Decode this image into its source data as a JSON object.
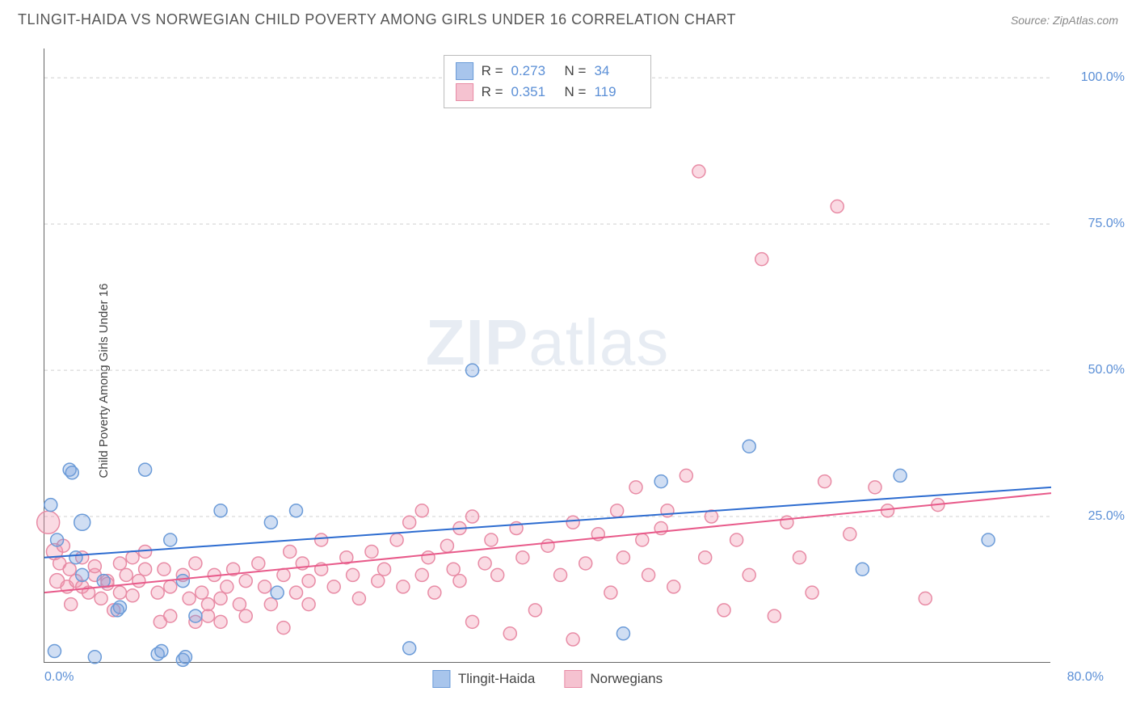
{
  "title": "TLINGIT-HAIDA VS NORWEGIAN CHILD POVERTY AMONG GIRLS UNDER 16 CORRELATION CHART",
  "source": "Source: ZipAtlas.com",
  "y_axis_label": "Child Poverty Among Girls Under 16",
  "watermark_bold": "ZIP",
  "watermark_rest": "atlas",
  "chart": {
    "type": "scatter",
    "xlim": [
      0,
      80
    ],
    "ylim": [
      0,
      105
    ],
    "x_ticks": [
      {
        "pos": 0,
        "label": "0.0%",
        "align": "left"
      },
      {
        "pos": 80,
        "label": "80.0%",
        "align": "right"
      }
    ],
    "y_ticks": [
      {
        "pos": 25,
        "label": "25.0%"
      },
      {
        "pos": 50,
        "label": "50.0%"
      },
      {
        "pos": 75,
        "label": "75.0%"
      },
      {
        "pos": 100,
        "label": "100.0%"
      }
    ],
    "grid_color": "#d0d0d0",
    "background_color": "#ffffff",
    "series": [
      {
        "name": "Tlingit-Haida",
        "fill": "rgba(120,160,220,0.35)",
        "stroke": "#6b9bd8",
        "swatch_fill": "#a8c5ec",
        "swatch_border": "#6b9bd8",
        "R": "0.273",
        "N": "34",
        "trend_color": "#2d6cd0",
        "trend": {
          "x1": 0,
          "y1": 18,
          "x2": 80,
          "y2": 30
        },
        "points": [
          {
            "x": 0.5,
            "y": 27,
            "r": 8
          },
          {
            "x": 0.8,
            "y": 2,
            "r": 8
          },
          {
            "x": 1,
            "y": 21,
            "r": 8
          },
          {
            "x": 2,
            "y": 33,
            "r": 8
          },
          {
            "x": 2.2,
            "y": 32.5,
            "r": 8
          },
          {
            "x": 2.5,
            "y": 18,
            "r": 8
          },
          {
            "x": 3,
            "y": 15,
            "r": 8
          },
          {
            "x": 3,
            "y": 24,
            "r": 10
          },
          {
            "x": 4,
            "y": 1,
            "r": 8
          },
          {
            "x": 4.7,
            "y": 14,
            "r": 8
          },
          {
            "x": 5.8,
            "y": 9,
            "r": 8
          },
          {
            "x": 6,
            "y": 9.5,
            "r": 8
          },
          {
            "x": 8,
            "y": 33,
            "r": 8
          },
          {
            "x": 9,
            "y": 1.5,
            "r": 8
          },
          {
            "x": 9.3,
            "y": 2,
            "r": 8
          },
          {
            "x": 10,
            "y": 21,
            "r": 8
          },
          {
            "x": 11,
            "y": 14,
            "r": 8
          },
          {
            "x": 11,
            "y": 0.5,
            "r": 8
          },
          {
            "x": 11.2,
            "y": 1,
            "r": 8
          },
          {
            "x": 12,
            "y": 8,
            "r": 8
          },
          {
            "x": 14,
            "y": 26,
            "r": 8
          },
          {
            "x": 18,
            "y": 24,
            "r": 8
          },
          {
            "x": 18.5,
            "y": 12,
            "r": 8
          },
          {
            "x": 20,
            "y": 26,
            "r": 8
          },
          {
            "x": 29,
            "y": 2.5,
            "r": 8
          },
          {
            "x": 34,
            "y": 50,
            "r": 8
          },
          {
            "x": 46,
            "y": 5,
            "r": 8
          },
          {
            "x": 49,
            "y": 31,
            "r": 8
          },
          {
            "x": 56,
            "y": 37,
            "r": 8
          },
          {
            "x": 65,
            "y": 16,
            "r": 8
          },
          {
            "x": 68,
            "y": 32,
            "r": 8
          },
          {
            "x": 75,
            "y": 21,
            "r": 8
          }
        ]
      },
      {
        "name": "Norwegians",
        "fill": "rgba(240,150,175,0.35)",
        "stroke": "#e88ba5",
        "swatch_fill": "#f5c2d0",
        "swatch_border": "#e88ba5",
        "R": "0.351",
        "N": "119",
        "trend_color": "#e85a8a",
        "trend": {
          "x1": 0,
          "y1": 12,
          "x2": 80,
          "y2": 29
        },
        "points": [
          {
            "x": 0.3,
            "y": 24,
            "r": 14
          },
          {
            "x": 0.8,
            "y": 19,
            "r": 10
          },
          {
            "x": 1,
            "y": 14,
            "r": 9
          },
          {
            "x": 1.2,
            "y": 17,
            "r": 8
          },
          {
            "x": 1.5,
            "y": 20,
            "r": 8
          },
          {
            "x": 1.8,
            "y": 13,
            "r": 8
          },
          {
            "x": 2,
            "y": 16,
            "r": 8
          },
          {
            "x": 2.1,
            "y": 10,
            "r": 8
          },
          {
            "x": 2.5,
            "y": 14,
            "r": 8
          },
          {
            "x": 3,
            "y": 13,
            "r": 8
          },
          {
            "x": 3,
            "y": 18,
            "r": 8
          },
          {
            "x": 3.5,
            "y": 12,
            "r": 8
          },
          {
            "x": 4,
            "y": 15,
            "r": 8
          },
          {
            "x": 4,
            "y": 16.5,
            "r": 8
          },
          {
            "x": 4.5,
            "y": 11,
            "r": 8
          },
          {
            "x": 5,
            "y": 14,
            "r": 8
          },
          {
            "x": 5,
            "y": 13.5,
            "r": 8
          },
          {
            "x": 5.5,
            "y": 9,
            "r": 8
          },
          {
            "x": 6,
            "y": 17,
            "r": 8
          },
          {
            "x": 6,
            "y": 12,
            "r": 8
          },
          {
            "x": 6.5,
            "y": 15,
            "r": 8
          },
          {
            "x": 7,
            "y": 18,
            "r": 8
          },
          {
            "x": 7,
            "y": 11.5,
            "r": 8
          },
          {
            "x": 7.5,
            "y": 14,
            "r": 8
          },
          {
            "x": 8,
            "y": 16,
            "r": 8
          },
          {
            "x": 8,
            "y": 19,
            "r": 8
          },
          {
            "x": 9,
            "y": 12,
            "r": 8
          },
          {
            "x": 9.2,
            "y": 7,
            "r": 8
          },
          {
            "x": 9.5,
            "y": 16,
            "r": 8
          },
          {
            "x": 10,
            "y": 13,
            "r": 8
          },
          {
            "x": 10,
            "y": 8,
            "r": 8
          },
          {
            "x": 11,
            "y": 15,
            "r": 8
          },
          {
            "x": 11.5,
            "y": 11,
            "r": 8
          },
          {
            "x": 12,
            "y": 7,
            "r": 8
          },
          {
            "x": 12,
            "y": 17,
            "r": 8
          },
          {
            "x": 12.5,
            "y": 12,
            "r": 8
          },
          {
            "x": 13,
            "y": 10,
            "r": 8
          },
          {
            "x": 13,
            "y": 8,
            "r": 8
          },
          {
            "x": 13.5,
            "y": 15,
            "r": 8
          },
          {
            "x": 14,
            "y": 11,
            "r": 8
          },
          {
            "x": 14,
            "y": 7,
            "r": 8
          },
          {
            "x": 14.5,
            "y": 13,
            "r": 8
          },
          {
            "x": 15,
            "y": 16,
            "r": 8
          },
          {
            "x": 15.5,
            "y": 10,
            "r": 8
          },
          {
            "x": 16,
            "y": 14,
            "r": 8
          },
          {
            "x": 16,
            "y": 8,
            "r": 8
          },
          {
            "x": 17,
            "y": 17,
            "r": 8
          },
          {
            "x": 17.5,
            "y": 13,
            "r": 8
          },
          {
            "x": 18,
            "y": 10,
            "r": 8
          },
          {
            "x": 19,
            "y": 15,
            "r": 8
          },
          {
            "x": 19,
            "y": 6,
            "r": 8
          },
          {
            "x": 19.5,
            "y": 19,
            "r": 8
          },
          {
            "x": 20,
            "y": 12,
            "r": 8
          },
          {
            "x": 20.5,
            "y": 17,
            "r": 8
          },
          {
            "x": 21,
            "y": 14,
            "r": 8
          },
          {
            "x": 21,
            "y": 10,
            "r": 8
          },
          {
            "x": 22,
            "y": 16,
            "r": 8
          },
          {
            "x": 22,
            "y": 21,
            "r": 8
          },
          {
            "x": 23,
            "y": 13,
            "r": 8
          },
          {
            "x": 24,
            "y": 18,
            "r": 8
          },
          {
            "x": 24.5,
            "y": 15,
            "r": 8
          },
          {
            "x": 25,
            "y": 11,
            "r": 8
          },
          {
            "x": 26,
            "y": 19,
            "r": 8
          },
          {
            "x": 26.5,
            "y": 14,
            "r": 8
          },
          {
            "x": 27,
            "y": 16,
            "r": 8
          },
          {
            "x": 28,
            "y": 21,
            "r": 8
          },
          {
            "x": 28.5,
            "y": 13,
            "r": 8
          },
          {
            "x": 29,
            "y": 24,
            "r": 8
          },
          {
            "x": 30,
            "y": 26,
            "r": 8
          },
          {
            "x": 30,
            "y": 15,
            "r": 8
          },
          {
            "x": 30.5,
            "y": 18,
            "r": 8
          },
          {
            "x": 31,
            "y": 12,
            "r": 8
          },
          {
            "x": 32,
            "y": 20,
            "r": 8
          },
          {
            "x": 32.5,
            "y": 16,
            "r": 8
          },
          {
            "x": 33,
            "y": 23,
            "r": 8
          },
          {
            "x": 33,
            "y": 14,
            "r": 8
          },
          {
            "x": 34,
            "y": 25,
            "r": 8
          },
          {
            "x": 34,
            "y": 7,
            "r": 8
          },
          {
            "x": 35,
            "y": 17,
            "r": 8
          },
          {
            "x": 35.5,
            "y": 21,
            "r": 8
          },
          {
            "x": 36,
            "y": 15,
            "r": 8
          },
          {
            "x": 37,
            "y": 5,
            "r": 8
          },
          {
            "x": 37.5,
            "y": 23,
            "r": 8
          },
          {
            "x": 38,
            "y": 18,
            "r": 8
          },
          {
            "x": 39,
            "y": 9,
            "r": 8
          },
          {
            "x": 40,
            "y": 20,
            "r": 8
          },
          {
            "x": 41,
            "y": 15,
            "r": 8
          },
          {
            "x": 42,
            "y": 24,
            "r": 8
          },
          {
            "x": 42,
            "y": 4,
            "r": 8
          },
          {
            "x": 43,
            "y": 17,
            "r": 8
          },
          {
            "x": 44,
            "y": 22,
            "r": 8
          },
          {
            "x": 45,
            "y": 12,
            "r": 8
          },
          {
            "x": 45.5,
            "y": 26,
            "r": 8
          },
          {
            "x": 46,
            "y": 18,
            "r": 8
          },
          {
            "x": 47,
            "y": 30,
            "r": 8
          },
          {
            "x": 47.5,
            "y": 21,
            "r": 8
          },
          {
            "x": 48,
            "y": 15,
            "r": 8
          },
          {
            "x": 49,
            "y": 23,
            "r": 8
          },
          {
            "x": 49.5,
            "y": 26,
            "r": 8
          },
          {
            "x": 50,
            "y": 13,
            "r": 8
          },
          {
            "x": 51,
            "y": 32,
            "r": 8
          },
          {
            "x": 52,
            "y": 84,
            "r": 8
          },
          {
            "x": 52.5,
            "y": 18,
            "r": 8
          },
          {
            "x": 53,
            "y": 25,
            "r": 8
          },
          {
            "x": 54,
            "y": 9,
            "r": 8
          },
          {
            "x": 55,
            "y": 21,
            "r": 8
          },
          {
            "x": 56,
            "y": 15,
            "r": 8
          },
          {
            "x": 57,
            "y": 69,
            "r": 8
          },
          {
            "x": 58,
            "y": 8,
            "r": 8
          },
          {
            "x": 59,
            "y": 24,
            "r": 8
          },
          {
            "x": 60,
            "y": 18,
            "r": 8
          },
          {
            "x": 61,
            "y": 12,
            "r": 8
          },
          {
            "x": 62,
            "y": 31,
            "r": 8
          },
          {
            "x": 63,
            "y": 78,
            "r": 8
          },
          {
            "x": 64,
            "y": 22,
            "r": 8
          },
          {
            "x": 66,
            "y": 30,
            "r": 8
          },
          {
            "x": 67,
            "y": 26,
            "r": 8
          },
          {
            "x": 70,
            "y": 11,
            "r": 8
          },
          {
            "x": 71,
            "y": 27,
            "r": 8
          }
        ]
      }
    ]
  },
  "legend": {
    "series1_label": "Tlingit-Haida",
    "series2_label": "Norwegians",
    "R_label": "R =",
    "N_label": "N ="
  }
}
